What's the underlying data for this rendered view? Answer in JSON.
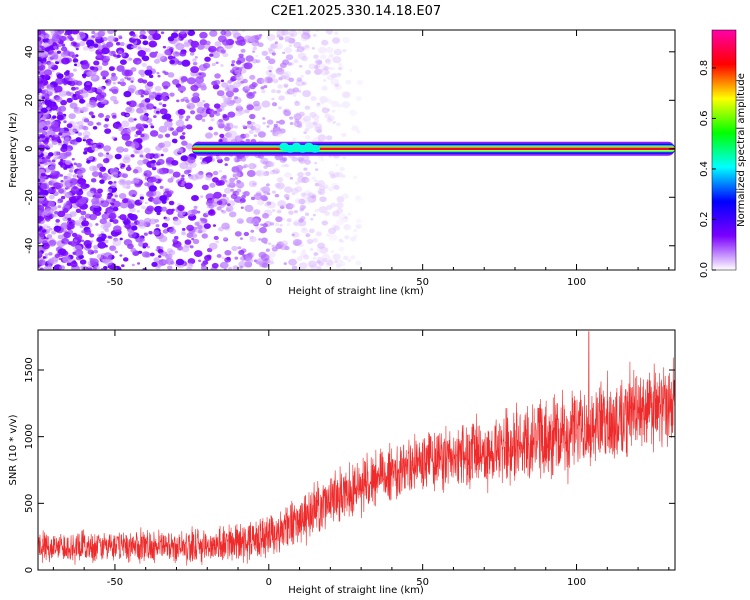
{
  "title": "C2E1.2025.330.14.18.E07",
  "chart_data": [
    {
      "type": "heatmap",
      "title": "C2E1.2025.330.14.18.E07",
      "xlabel": "Height of straight line (km)",
      "ylabel": "Frequency (Hz)",
      "xlim": [
        -75,
        132
      ],
      "ylim": [
        -50,
        49
      ],
      "x_ticks": [
        -50,
        0,
        50,
        100
      ],
      "y_ticks": [
        -40,
        -20,
        0,
        20,
        40
      ],
      "x_tick_labels": [
        "-50",
        "0",
        "50",
        "100"
      ],
      "y_tick_labels": [
        "-40",
        "-20",
        "0",
        "20",
        "40"
      ],
      "colorbar": {
        "label": "Normalized spectral amplitude",
        "range": [
          0,
          0.95
        ],
        "ticks": [
          0,
          0.2,
          0.4,
          0.6,
          0.8
        ],
        "tick_labels": [
          "0.0",
          "0.2",
          "0.4",
          "0.6",
          "0.8"
        ],
        "colormap": [
          "#ffffff",
          "#7a00ff",
          "#0000ff",
          "#00ffff",
          "#00ff00",
          "#ffff00",
          "#ff0000",
          "#ff00aa"
        ]
      },
      "signal": {
        "noise_region_x": [
          -75,
          -25
        ],
        "noise_level": 0.2,
        "line_frequency": 0,
        "line_start_x": -25,
        "line_peak_level": 0.85
      },
      "grid": false
    },
    {
      "type": "line",
      "xlabel": "Height of straight line (km)",
      "ylabel": "SNR (10 * v/v)",
      "xlim": [
        -75,
        132
      ],
      "ylim": [
        0,
        1800
      ],
      "x_ticks": [
        -50,
        0,
        50,
        100
      ],
      "y_ticks": [
        0,
        500,
        1000,
        1500
      ],
      "x_tick_labels": [
        "-50",
        "0",
        "50",
        "100"
      ],
      "y_tick_labels": [
        "0",
        "500",
        "1000",
        "1500"
      ],
      "color": "#ee2a2a",
      "trend": {
        "x": [
          -75,
          -50,
          -25,
          -10,
          0,
          10,
          20,
          30,
          40,
          50,
          60,
          70,
          80,
          90,
          100,
          110,
          120,
          132
        ],
        "y": [
          170,
          180,
          175,
          200,
          260,
          360,
          520,
          650,
          740,
          800,
          850,
          880,
          930,
          980,
          1050,
          1120,
          1180,
          1250
        ]
      },
      "spread": {
        "x": [
          -75,
          -25,
          0,
          30,
          60,
          100,
          132
        ],
        "y": [
          90,
          100,
          130,
          170,
          200,
          240,
          260
        ]
      },
      "peak": {
        "x": 104,
        "y": 1790
      },
      "grid": false
    }
  ]
}
